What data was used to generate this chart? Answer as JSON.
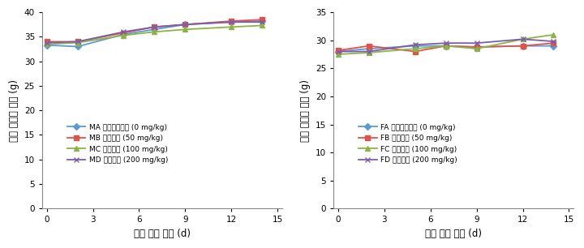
{
  "male": {
    "x": [
      0,
      2,
      5,
      7,
      9,
      12,
      14
    ],
    "MA": [
      33.3,
      33.0,
      35.5,
      36.5,
      37.5,
      38.0,
      38.2
    ],
    "MB": [
      34.0,
      34.0,
      35.8,
      37.0,
      37.5,
      38.2,
      38.5
    ],
    "MC": [
      33.5,
      33.8,
      35.3,
      36.0,
      36.5,
      37.0,
      37.3
    ],
    "MD": [
      33.8,
      34.0,
      36.0,
      37.0,
      37.5,
      38.0,
      38.0
    ],
    "series_keys": [
      "MA",
      "MB",
      "MC",
      "MD"
    ],
    "labels": [
      "MA 부형제대조군 (0 mg/kg)",
      "MB 저용량군 (50 mg/kg)",
      "MC 중용량군 (100 mg/kg)",
      "MD 고용량군 (200 mg/kg)"
    ],
    "colors": [
      "#5b9bd5",
      "#e0534a",
      "#8ab545",
      "#7b5ea7"
    ],
    "markers": [
      "D",
      "s",
      "^",
      "x"
    ],
    "ylabel_chars": [
      "수",
      "컷",
      " ",
      "마",
      "우",
      "스",
      " ",
      "체",
      "중",
      " ",
      "(g)"
    ],
    "ylabel": "수컷 마우스 체중 (g)",
    "ylim": [
      0,
      40
    ],
    "yticks": [
      0,
      5,
      10,
      15,
      20,
      25,
      30,
      35,
      40
    ]
  },
  "female": {
    "x": [
      0,
      2,
      5,
      7,
      9,
      12,
      14
    ],
    "FA": [
      28.0,
      28.5,
      29.0,
      29.0,
      28.8,
      29.0,
      29.0
    ],
    "FB": [
      28.2,
      29.0,
      28.0,
      29.0,
      28.8,
      29.0,
      29.5
    ],
    "FC": [
      27.5,
      27.8,
      28.5,
      29.0,
      28.5,
      30.2,
      31.0
    ],
    "FD": [
      28.0,
      28.0,
      29.2,
      29.5,
      29.5,
      30.2,
      29.8
    ],
    "series_keys": [
      "FA",
      "FB",
      "FC",
      "FD"
    ],
    "labels": [
      "FA 부형제대조군 (0 mg/kg)",
      "FB 저용량군 (50 mg/kg)",
      "FC 중용량군 (100 mg/kg)",
      "FD 고용량군 (200 mg/kg)"
    ],
    "colors": [
      "#5b9bd5",
      "#e0534a",
      "#8ab545",
      "#7b5ea7"
    ],
    "markers": [
      "D",
      "s",
      "^",
      "x"
    ],
    "ylabel_chars": [
      "암",
      "컷",
      " ",
      "마",
      "우",
      "스",
      " ",
      "체",
      "중",
      " ",
      "(g)"
    ],
    "ylabel": "암컷 마우스 체중 (g)",
    "ylim": [
      0,
      35
    ],
    "yticks": [
      0,
      5,
      10,
      15,
      20,
      25,
      30,
      35
    ]
  },
  "xlabel": "투여 이후 날짜 (d)",
  "xticks": [
    0,
    3,
    6,
    9,
    12,
    15
  ],
  "xlim": [
    -0.3,
    15.3
  ],
  "background_color": "#ffffff",
  "legend_fontsize": 6.5,
  "axis_fontsize": 8.5,
  "tick_fontsize": 7.5,
  "linewidth": 1.3,
  "markersize": 4.5
}
